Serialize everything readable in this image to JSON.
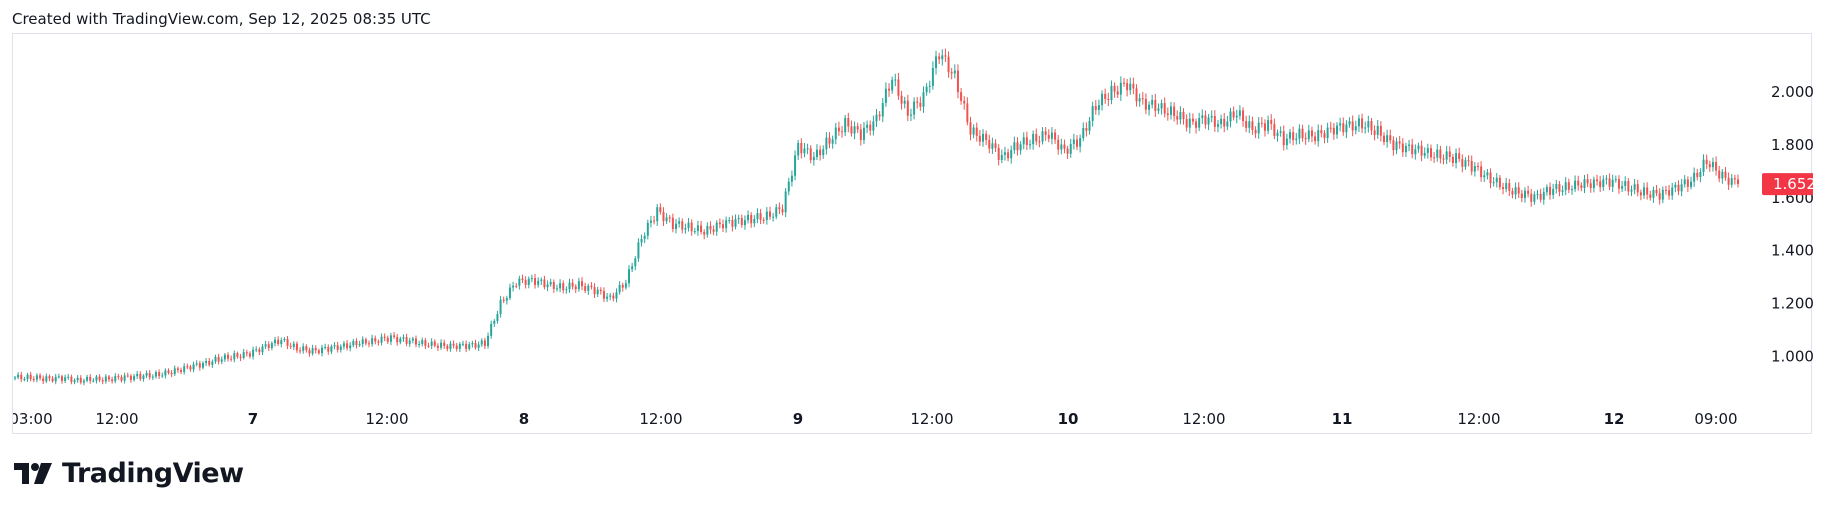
{
  "header": {
    "caption": "Created with TradingView.com, Sep 12, 2025 08:35 UTC"
  },
  "footer": {
    "brand_name": "TradingView",
    "logo_icon": "tradingview-logo-icon"
  },
  "colors": {
    "up": "#26a69a",
    "down": "#ef5350",
    "last_price_bg": "#f23645",
    "text": "#131722"
  },
  "chart_data": {
    "type": "candlestick",
    "title": "",
    "xlabel": "",
    "ylabel": "",
    "ylim": [
      0.85,
      2.22
    ],
    "grid": false,
    "y_ticks": [
      "1.000",
      "1.200",
      "1.400",
      "1.600",
      "1.800",
      "2.000"
    ],
    "x_ticks": [
      {
        "label": "03:00",
        "major": false
      },
      {
        "label": "12:00",
        "major": false
      },
      {
        "label": "7",
        "major": true
      },
      {
        "label": "12:00",
        "major": false
      },
      {
        "label": "8",
        "major": true
      },
      {
        "label": "12:00",
        "major": false
      },
      {
        "label": "9",
        "major": true
      },
      {
        "label": "12:00",
        "major": false
      },
      {
        "label": "10",
        "major": true
      },
      {
        "label": "12:00",
        "major": false
      },
      {
        "label": "11",
        "major": true
      },
      {
        "label": "12:00",
        "major": false
      },
      {
        "label": "12",
        "major": true
      },
      {
        "label": "09:00",
        "major": false
      }
    ],
    "last_price": "1.652",
    "close_series": [
      0.92,
      0.92,
      0.915,
      0.918,
      0.91,
      0.912,
      0.915,
      0.92,
      0.925,
      0.93,
      0.94,
      0.96,
      0.97,
      0.99,
      1.0,
      1.01,
      1.04,
      1.06,
      1.03,
      1.02,
      1.03,
      1.04,
      1.05,
      1.06,
      1.07,
      1.06,
      1.05,
      1.04,
      1.04,
      1.04,
      1.05,
      1.2,
      1.28,
      1.29,
      1.27,
      1.26,
      1.27,
      1.25,
      1.22,
      1.28,
      1.45,
      1.55,
      1.5,
      1.49,
      1.47,
      1.5,
      1.51,
      1.52,
      1.53,
      1.56,
      1.8,
      1.75,
      1.82,
      1.88,
      1.84,
      1.9,
      2.05,
      1.92,
      1.98,
      2.15,
      2.06,
      1.85,
      1.82,
      1.75,
      1.8,
      1.82,
      1.84,
      1.78,
      1.82,
      1.95,
      2.0,
      2.03,
      1.96,
      1.94,
      1.92,
      1.88,
      1.9,
      1.88,
      1.92,
      1.86,
      1.88,
      1.82,
      1.84,
      1.83,
      1.86,
      1.87,
      1.88,
      1.85,
      1.8,
      1.79,
      1.77,
      1.76,
      1.75,
      1.72,
      1.68,
      1.64,
      1.62,
      1.6,
      1.63,
      1.64,
      1.65,
      1.66,
      1.66,
      1.64,
      1.62,
      1.61,
      1.64,
      1.66,
      1.74,
      1.68,
      1.652
    ]
  }
}
